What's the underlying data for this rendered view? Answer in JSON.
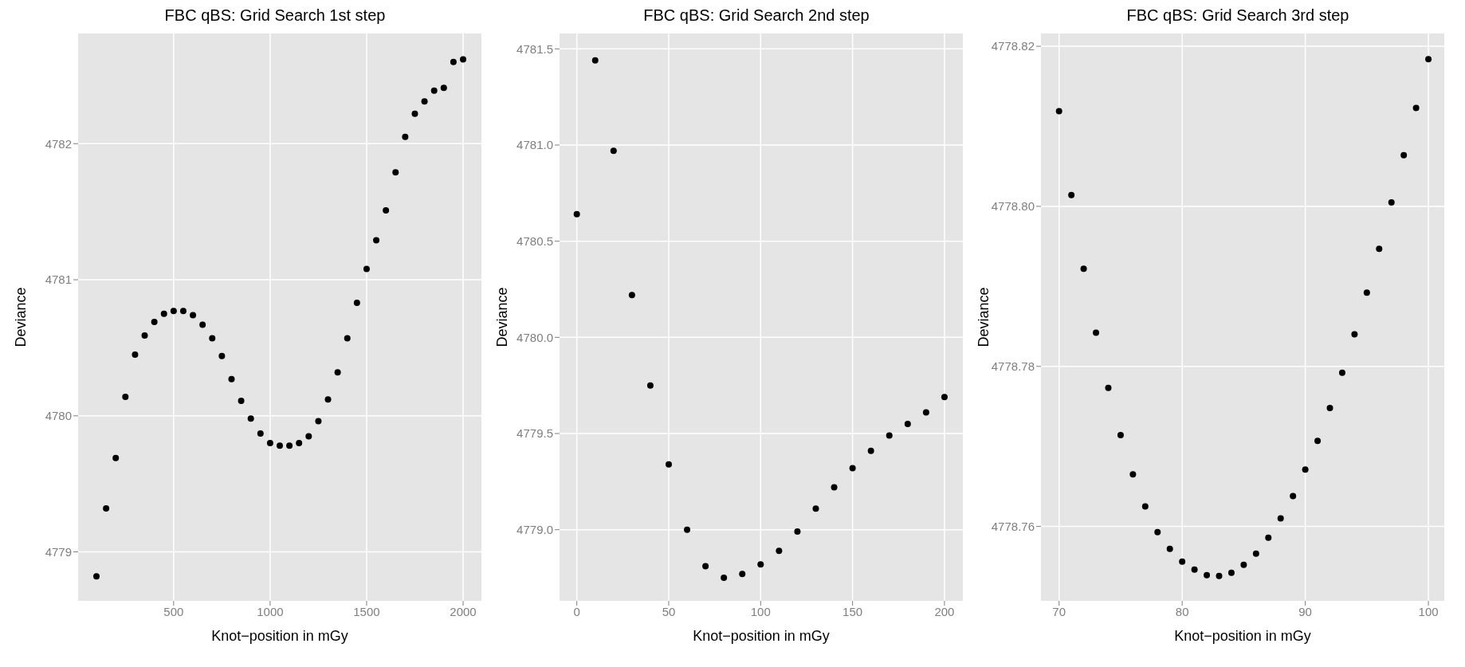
{
  "chart_data": [
    {
      "type": "scatter",
      "title": "FBC qBS: Grid Search 1st step",
      "xlabel": "Knot−position in mGy",
      "ylabel": "Deviance",
      "color": "#000000",
      "marker": "circle",
      "grid": true,
      "x": [
        100,
        150,
        200,
        250,
        300,
        350,
        400,
        450,
        500,
        550,
        600,
        650,
        700,
        750,
        800,
        850,
        900,
        950,
        1000,
        1050,
        1100,
        1150,
        1200,
        1250,
        1300,
        1350,
        1400,
        1450,
        1500,
        1550,
        1600,
        1650,
        1700,
        1750,
        1800,
        1850,
        1900,
        1950,
        2000
      ],
      "values": [
        4778.82,
        4779.32,
        4779.69,
        4780.14,
        4780.45,
        4780.59,
        4780.69,
        4780.75,
        4780.77,
        4780.77,
        4780.74,
        4780.67,
        4780.57,
        4780.44,
        4780.27,
        4780.11,
        4779.98,
        4779.87,
        4779.8,
        4779.78,
        4779.78,
        4779.8,
        4779.85,
        4779.96,
        4780.12,
        4780.32,
        4780.57,
        4780.83,
        4781.08,
        4781.29,
        4781.51,
        4781.79,
        4782.05,
        4782.22,
        4782.31,
        4782.39,
        4782.41,
        4782.6,
        4782.62
      ],
      "xlim": [
        5,
        2095
      ],
      "ylim": [
        4778.64,
        4782.81
      ],
      "xticks": [
        500,
        1000,
        1500,
        2000
      ],
      "yticks": [
        4779,
        4780,
        4781,
        4782
      ]
    },
    {
      "type": "scatter",
      "title": "FBC qBS: Grid Search 2nd step",
      "xlabel": "Knot−position in mGy",
      "ylabel": "Deviance",
      "color": "#000000",
      "marker": "circle",
      "grid": true,
      "x": [
        0,
        10,
        20,
        30,
        40,
        50,
        60,
        70,
        80,
        90,
        100,
        110,
        120,
        130,
        140,
        150,
        160,
        170,
        180,
        190,
        200
      ],
      "values": [
        4780.64,
        4781.44,
        4780.97,
        4780.22,
        4779.75,
        4779.34,
        4779.0,
        4778.81,
        4778.75,
        4778.77,
        4778.82,
        4778.89,
        4778.99,
        4779.11,
        4779.22,
        4779.32,
        4779.41,
        4779.49,
        4779.55,
        4779.61,
        4779.69
      ],
      "xlim": [
        -9.4,
        210
      ],
      "ylim": [
        4778.63,
        4781.58
      ],
      "xticks": [
        0,
        50,
        100,
        150,
        200
      ],
      "yticks": [
        {
          "value": 4779,
          "label": "4779.0"
        },
        4779.5,
        {
          "value": 4780,
          "label": "4780.0"
        },
        4780.5,
        {
          "value": 4781,
          "label": "4781.0"
        },
        4781.5
      ]
    },
    {
      "type": "scatter",
      "title": "FBC qBS: Grid Search 3rd step",
      "xlabel": "Knot−position in mGy",
      "ylabel": "Deviance",
      "color": "#000000",
      "marker": "circle",
      "grid": true,
      "x": [
        70,
        71,
        72,
        73,
        74,
        75,
        76,
        77,
        78,
        79,
        80,
        81,
        82,
        83,
        84,
        85,
        86,
        87,
        88,
        89,
        90,
        91,
        92,
        93,
        94,
        95,
        96,
        97,
        98,
        99,
        100
      ],
      "values": [
        4778.8119,
        4778.8014,
        4778.7922,
        4778.7842,
        4778.7773,
        4778.7714,
        4778.7665,
        4778.7625,
        4778.7593,
        4778.7572,
        4778.7556,
        4778.7546,
        4778.7539,
        4778.7538,
        4778.7542,
        4778.7552,
        4778.7566,
        4778.7586,
        4778.761,
        4778.7638,
        4778.7671,
        4778.7707,
        4778.7748,
        4778.7792,
        4778.784,
        4778.7892,
        4778.7947,
        4778.8005,
        4778.8064,
        4778.8123,
        4778.8184
      ],
      "xlim": [
        68.53,
        101.29
      ],
      "ylim": [
        4778.7507,
        4778.8216
      ],
      "xticks": [
        70,
        80,
        90,
        100
      ],
      "yticks": [
        {
          "value": 4778.76,
          "label": "4778.76"
        },
        {
          "value": 4778.78,
          "label": "4778.78"
        },
        {
          "value": 4778.8,
          "label": "4778.80"
        },
        {
          "value": 4778.82,
          "label": "4778.82"
        }
      ]
    }
  ]
}
